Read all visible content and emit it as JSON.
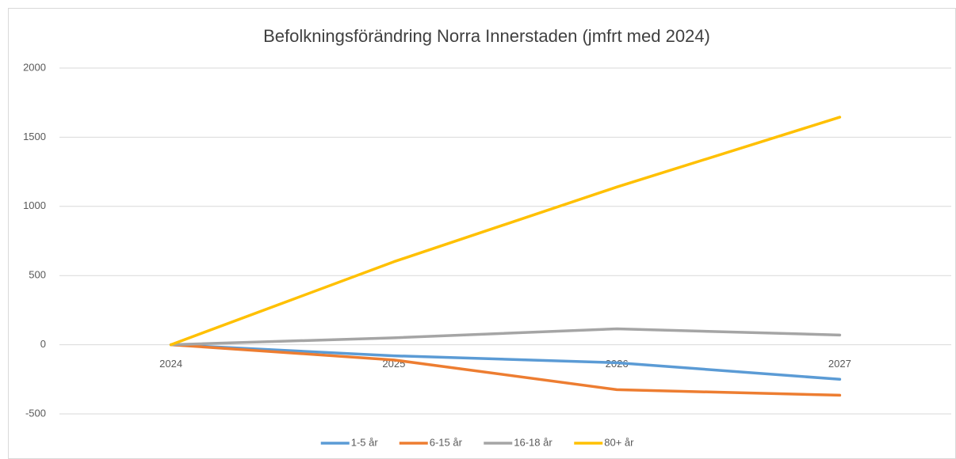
{
  "chart_data": {
    "type": "line",
    "title": "Befolkningsförändring Norra Innerstaden (jmfrt med 2024)",
    "categories": [
      "2024",
      "2025",
      "2026",
      "2027"
    ],
    "series": [
      {
        "name": "1-5 år",
        "color": "#5b9bd5",
        "values": [
          0,
          -80,
          -130,
          -250
        ]
      },
      {
        "name": "6-15 år",
        "color": "#ed7d31",
        "values": [
          0,
          -110,
          -325,
          -365
        ]
      },
      {
        "name": "16-18 år",
        "color": "#a5a5a5",
        "values": [
          0,
          50,
          115,
          70
        ]
      },
      {
        "name": "80+ år",
        "color": "#ffc000",
        "values": [
          0,
          600,
          1140,
          1645
        ]
      }
    ],
    "ylim": [
      -500,
      2000
    ],
    "yticks": [
      -500,
      0,
      500,
      1000,
      1500,
      2000
    ],
    "grid": true,
    "legend": "bottom"
  }
}
